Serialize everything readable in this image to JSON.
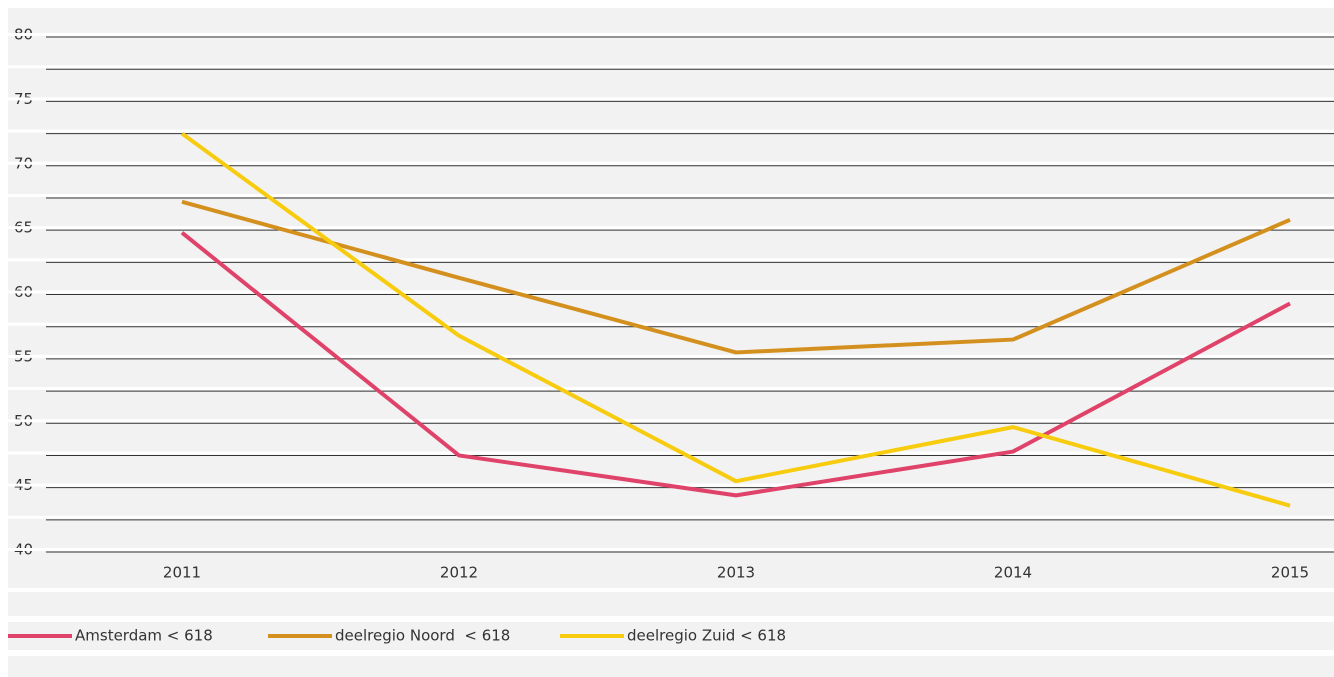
{
  "chart_data": {
    "type": "line",
    "categories": [
      "2011",
      "2012",
      "2013",
      "2014",
      "2015"
    ],
    "series": [
      {
        "name": "Amsterdam < 618",
        "color": "#e0436a",
        "values": [
          64.8,
          47.5,
          44.4,
          47.8,
          59.3
        ]
      },
      {
        "name": "deelregio Noord  < 618",
        "color": "#d4901e",
        "values": [
          67.2,
          61.3,
          55.5,
          56.5,
          65.8
        ]
      },
      {
        "name": "deelregio Zuid < 618",
        "color": "#f7cc0f",
        "values": [
          72.5,
          56.8,
          45.5,
          49.7,
          43.6
        ]
      }
    ],
    "ylim": [
      40,
      80
    ],
    "yticks": [
      40,
      45,
      50,
      55,
      60,
      65,
      70,
      75,
      80
    ],
    "grid": true,
    "minor_grid": true,
    "legend": "bottom-left"
  }
}
